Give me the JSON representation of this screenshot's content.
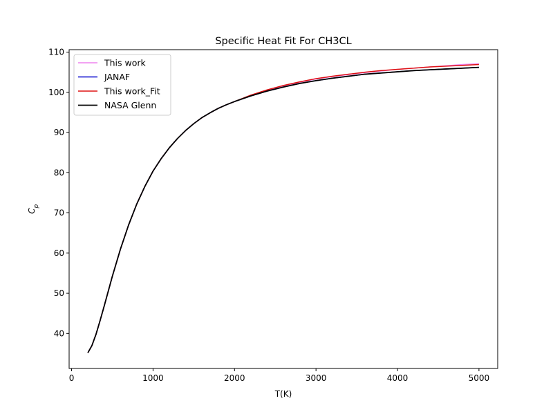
{
  "chart_data": {
    "type": "line",
    "title": "Specific Heat Fit For CH3CL",
    "xlabel": "T(K)",
    "ylabel": "C_p",
    "xlim": [
      -30,
      5230
    ],
    "ylim": [
      31.3,
      110.6
    ],
    "xticks": [
      0,
      1000,
      2000,
      3000,
      4000,
      5000
    ],
    "yticks": [
      40,
      50,
      60,
      70,
      80,
      90,
      100,
      110
    ],
    "grid": false,
    "legend_position": "upper-left",
    "x": [
      200,
      250,
      300,
      350,
      400,
      500,
      600,
      700,
      800,
      900,
      1000,
      1100,
      1200,
      1300,
      1400,
      1500,
      1600,
      1700,
      1800,
      1900,
      2000,
      2200,
      2400,
      2600,
      2800,
      3000,
      3200,
      3400,
      3600,
      3800,
      4000,
      4200,
      4400,
      4600,
      4800,
      5000
    ],
    "series": [
      {
        "name": "This work",
        "color": "#ee82ee",
        "width": 1.5,
        "values": [
          35.2,
          37.0,
          39.8,
          43.2,
          46.8,
          54.2,
          61.0,
          67.0,
          72.2,
          76.6,
          80.4,
          83.5,
          86.2,
          88.5,
          90.5,
          92.2,
          93.7,
          94.9,
          96.0,
          96.9,
          97.7,
          99.2,
          100.5,
          101.6,
          102.5,
          103.3,
          103.9,
          104.4,
          104.9,
          105.3,
          105.7,
          106.0,
          106.3,
          106.6,
          106.9,
          107.1
        ]
      },
      {
        "name": "JANAF",
        "color": "#0000cc",
        "width": 1.5,
        "values": [
          35.2,
          37.0,
          39.8,
          43.2,
          46.8,
          54.2,
          61.0,
          67.0,
          72.2,
          76.6,
          80.4,
          83.5,
          86.2,
          88.5,
          90.5,
          92.2,
          93.7,
          94.9,
          96.0,
          96.9,
          97.7,
          99.1,
          100.3,
          101.3,
          102.2,
          102.9,
          103.5,
          104.0,
          104.5,
          104.8,
          105.1,
          105.4,
          105.6,
          105.8,
          106.0,
          106.2
        ]
      },
      {
        "name": "This work_Fit",
        "color": "#dd1111",
        "width": 1.5,
        "values": [
          35.2,
          37.0,
          39.8,
          43.2,
          46.8,
          54.2,
          61.0,
          67.0,
          72.2,
          76.6,
          80.4,
          83.5,
          86.2,
          88.5,
          90.5,
          92.2,
          93.7,
          94.9,
          96.0,
          96.9,
          97.7,
          99.3,
          100.6,
          101.7,
          102.6,
          103.4,
          104.0,
          104.5,
          105.0,
          105.4,
          105.7,
          106.0,
          106.3,
          106.5,
          106.7,
          106.9
        ]
      },
      {
        "name": "NASA Glenn",
        "color": "#000000",
        "width": 1.8,
        "values": [
          35.2,
          37.0,
          39.8,
          43.2,
          46.8,
          54.2,
          61.0,
          67.0,
          72.2,
          76.6,
          80.4,
          83.5,
          86.2,
          88.5,
          90.5,
          92.2,
          93.7,
          94.9,
          96.0,
          96.9,
          97.7,
          99.1,
          100.3,
          101.3,
          102.2,
          102.9,
          103.5,
          104.0,
          104.5,
          104.8,
          105.1,
          105.4,
          105.6,
          105.8,
          106.0,
          106.2
        ]
      }
    ]
  }
}
